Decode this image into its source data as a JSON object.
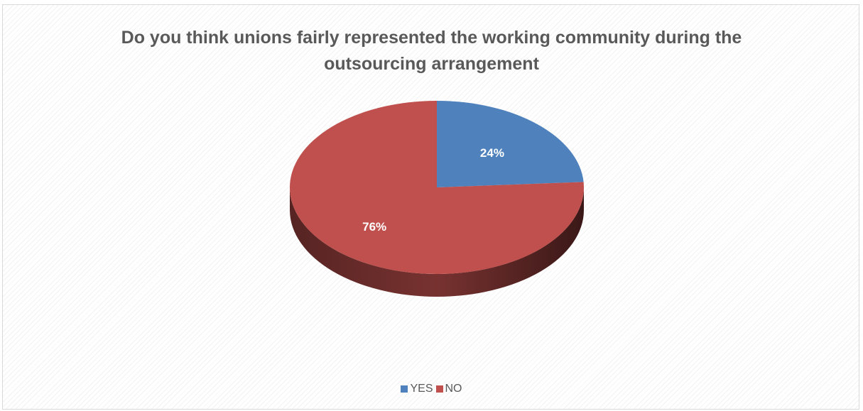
{
  "chart_data": {
    "type": "pie",
    "title": "Do you think unions fairly represented the working community during the outsourcing arrangement",
    "categories": [
      "YES",
      "NO"
    ],
    "values": [
      24,
      76
    ],
    "data_labels": [
      "24%",
      "76%"
    ],
    "colors": [
      "#4f81bd",
      "#c0504d"
    ],
    "style": "3d",
    "legend_position": "bottom"
  }
}
